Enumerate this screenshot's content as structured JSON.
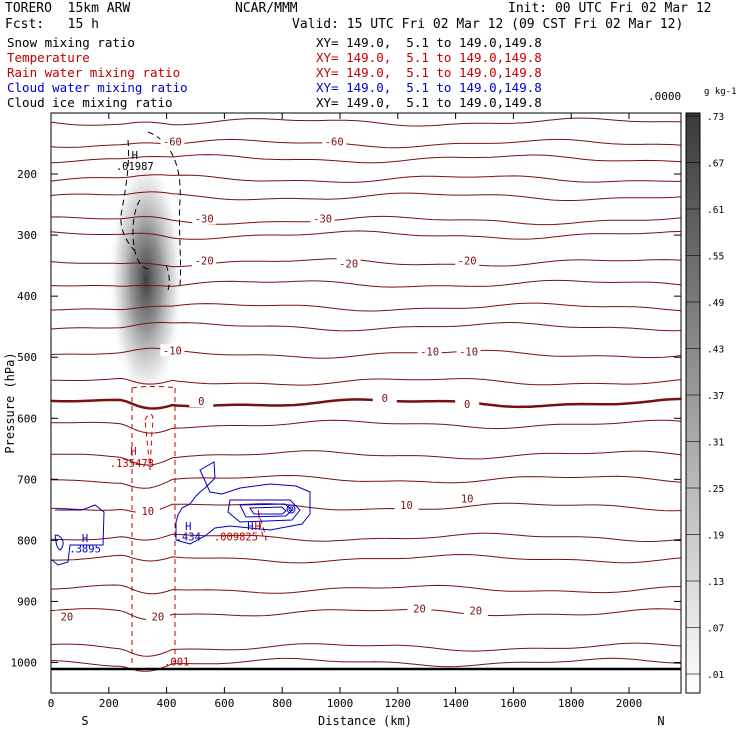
{
  "header": {
    "model": "TORERO  15km ARW",
    "center": "NCAR/MMM",
    "init": "Init: 00 UTC Fri 02 Mar 12",
    "fcst": "Fcst:   15 h",
    "valid": "Valid: 15 UTC Fri 02 Mar 12 (09 CST Fri 02 Mar 12)"
  },
  "fields": [
    {
      "name": "Snow mixing ratio",
      "xy": "XY= 149.0,  5.1 to 149.0,149.8",
      "color": "#000000"
    },
    {
      "name": "Temperature",
      "xy": "XY= 149.0,  5.1 to 149.0,149.8",
      "color": "#c00000"
    },
    {
      "name": "Rain water mixing ratio",
      "xy": "XY= 149.0,  5.1 to 149.0,149.8",
      "color": "#c00000"
    },
    {
      "name": "Cloud water mixing ratio",
      "xy": "XY= 149.0,  5.1 to 149.0,149.8",
      "color": "#0000c0"
    },
    {
      "name": "Cloud ice mixing ratio",
      "xy": "XY= 149.0,  5.1 to 149.0,149.8",
      "color": "#000000"
    }
  ],
  "chart_data": {
    "type": "cross-section",
    "xlabel": "Distance (km)",
    "ylabel": "Pressure (hPa)",
    "xlim": [
      0,
      2180
    ],
    "ylim": [
      1050,
      100
    ],
    "x_ticks": [
      0,
      200,
      400,
      600,
      800,
      1000,
      1200,
      1400,
      1600,
      1800,
      2000
    ],
    "y_ticks": [
      200,
      300,
      400,
      500,
      600,
      700,
      800,
      900,
      1000
    ],
    "x_end_labels": {
      "left": "S",
      "right": "N"
    },
    "colorbar": {
      "unit": "g kg-1",
      "ticks": [
        ".01",
        ".07",
        ".13",
        ".19",
        ".25",
        ".31",
        ".37",
        ".43",
        ".49",
        ".55",
        ".61",
        ".67",
        ".73"
      ],
      "top_label": ".0000"
    },
    "temperature_contour_labels": [
      {
        "x": 420,
        "p": 150,
        "text": "-60"
      },
      {
        "x": 980,
        "p": 150,
        "text": "-60"
      },
      {
        "x": 530,
        "p": 276,
        "text": "-30"
      },
      {
        "x": 940,
        "p": 276,
        "text": "-30"
      },
      {
        "x": 530,
        "p": 345,
        "text": "-20"
      },
      {
        "x": 1030,
        "p": 350,
        "text": "-20"
      },
      {
        "x": 1440,
        "p": 345,
        "text": "-20"
      },
      {
        "x": 420,
        "p": 492,
        "text": "-10"
      },
      {
        "x": 1310,
        "p": 494,
        "text": "-10"
      },
      {
        "x": 1445,
        "p": 494,
        "text": "-10"
      },
      {
        "x": 520,
        "p": 575,
        "text": "0"
      },
      {
        "x": 1155,
        "p": 570,
        "text": "0"
      },
      {
        "x": 1440,
        "p": 580,
        "text": "0"
      },
      {
        "x": 335,
        "p": 755,
        "text": "10"
      },
      {
        "x": 1230,
        "p": 745,
        "text": "10"
      },
      {
        "x": 1440,
        "p": 735,
        "text": "10"
      },
      {
        "x": 55,
        "p": 928,
        "text": "20"
      },
      {
        "x": 370,
        "p": 928,
        "text": "20"
      },
      {
        "x": 1275,
        "p": 915,
        "text": "20"
      },
      {
        "x": 1470,
        "p": 918,
        "text": "20"
      }
    ],
    "maxima_labels": [
      {
        "x": 290,
        "p": 175,
        "text": "H",
        "color": "#000000"
      },
      {
        "x": 290,
        "p": 193,
        "text": ".01987",
        "color": "#000000"
      },
      {
        "x": 285,
        "p": 660,
        "text": "H",
        "color": "#c00000"
      },
      {
        "x": 280,
        "p": 680,
        "text": ".135473",
        "color": "#c00000"
      },
      {
        "x": 118,
        "p": 803,
        "text": "H",
        "color": "#0000c0"
      },
      {
        "x": 118,
        "p": 820,
        "text": ".3895",
        "color": "#0000c0"
      },
      {
        "x": 475,
        "p": 783,
        "text": "H",
        "color": "#0000c0"
      },
      {
        "x": 475,
        "p": 800,
        "text": ".434",
        "color": "#0000c0"
      },
      {
        "x": 690,
        "p": 783,
        "text": "H",
        "color": "#0000c0"
      },
      {
        "x": 715,
        "p": 783,
        "text": "H",
        "color": "#c00000"
      },
      {
        "x": 640,
        "p": 800,
        "text": ".009825",
        "color": "#c00000"
      },
      {
        "x": 435,
        "p": 1005,
        "text": ".001",
        "color": "#c00000"
      }
    ]
  }
}
